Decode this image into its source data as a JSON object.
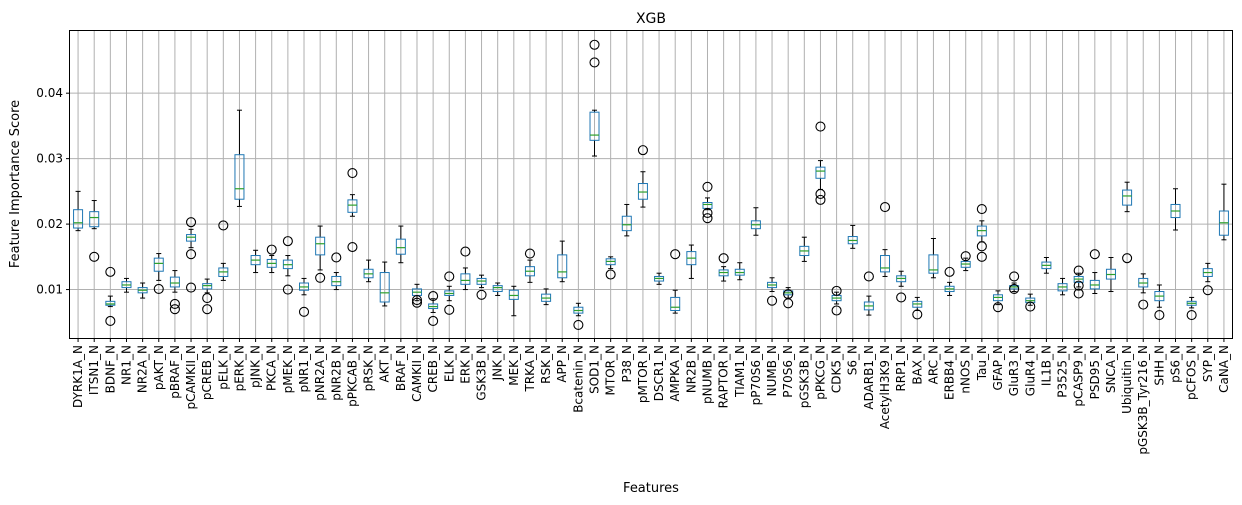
{
  "chart_data": {
    "type": "box",
    "title": "XGB",
    "xlabel": "Features",
    "ylabel": "Feature Importance Score",
    "ylim": [
      0.0026,
      0.0495
    ],
    "yticks": [
      0.01,
      0.02,
      0.03,
      0.04
    ],
    "ytick_labels": [
      "0.01",
      "0.02",
      "0.03",
      "0.04"
    ],
    "grid": true,
    "colors": {
      "box": "#1f77b4",
      "median": "#2ca02c",
      "grid": "#b0b0b0"
    },
    "features": [
      {
        "label": "DYRK1A_N",
        "whislo": 0.019,
        "q1": 0.0194,
        "med": 0.0202,
        "q3": 0.0222,
        "whishi": 0.025,
        "fliers": []
      },
      {
        "label": "ITSN1_N",
        "whislo": 0.0193,
        "q1": 0.0196,
        "med": 0.021,
        "q3": 0.0219,
        "whishi": 0.0236,
        "fliers": [
          0.015
        ]
      },
      {
        "label": "BDNF_N",
        "whislo": 0.0074,
        "q1": 0.0076,
        "med": 0.0078,
        "q3": 0.0082,
        "whishi": 0.009,
        "fliers": [
          0.0127,
          0.0052
        ]
      },
      {
        "label": "NR1_N",
        "whislo": 0.0096,
        "q1": 0.0103,
        "med": 0.0107,
        "q3": 0.0112,
        "whishi": 0.0117,
        "fliers": []
      },
      {
        "label": "NR2A_N",
        "whislo": 0.0087,
        "q1": 0.0095,
        "med": 0.0099,
        "q3": 0.0103,
        "whishi": 0.011,
        "fliers": []
      },
      {
        "label": "pAKT_N",
        "whislo": 0.0114,
        "q1": 0.0128,
        "med": 0.014,
        "q3": 0.0148,
        "whishi": 0.0155,
        "fliers": [
          0.0101
        ]
      },
      {
        "label": "pBRAF_N",
        "whislo": 0.0096,
        "q1": 0.0104,
        "med": 0.011,
        "q3": 0.0119,
        "whishi": 0.0129,
        "fliers": [
          0.0078,
          0.007
        ]
      },
      {
        "label": "pCAMKII_N",
        "whislo": 0.0164,
        "q1": 0.0174,
        "med": 0.018,
        "q3": 0.0184,
        "whishi": 0.0192,
        "fliers": [
          0.0203,
          0.0154,
          0.0103
        ]
      },
      {
        "label": "pCREB_N",
        "whislo": 0.0095,
        "q1": 0.0101,
        "med": 0.0106,
        "q3": 0.0109,
        "whishi": 0.0116,
        "fliers": [
          0.0087,
          0.007
        ]
      },
      {
        "label": "pELK_N",
        "whislo": 0.0114,
        "q1": 0.012,
        "med": 0.0127,
        "q3": 0.0133,
        "whishi": 0.014,
        "fliers": [
          0.0198
        ]
      },
      {
        "label": "pERK_N",
        "whislo": 0.0227,
        "q1": 0.0238,
        "med": 0.0254,
        "q3": 0.0306,
        "whishi": 0.0374,
        "fliers": []
      },
      {
        "label": "pJNK_N",
        "whislo": 0.0126,
        "q1": 0.0138,
        "med": 0.0145,
        "q3": 0.0152,
        "whishi": 0.016,
        "fliers": []
      },
      {
        "label": "PKCA_N",
        "whislo": 0.0126,
        "q1": 0.0134,
        "med": 0.014,
        "q3": 0.0146,
        "whishi": 0.0152,
        "fliers": [
          0.0161
        ]
      },
      {
        "label": "pMEK_N",
        "whislo": 0.0121,
        "q1": 0.0132,
        "med": 0.0138,
        "q3": 0.0145,
        "whishi": 0.0152,
        "fliers": [
          0.0174,
          0.01
        ]
      },
      {
        "label": "pNR1_N",
        "whislo": 0.0092,
        "q1": 0.0099,
        "med": 0.0104,
        "q3": 0.011,
        "whishi": 0.0117,
        "fliers": [
          0.0066
        ]
      },
      {
        "label": "pNR2A_N",
        "whislo": 0.013,
        "q1": 0.0153,
        "med": 0.017,
        "q3": 0.018,
        "whishi": 0.0197,
        "fliers": [
          0.0118
        ]
      },
      {
        "label": "pNR2B_N",
        "whislo": 0.01,
        "q1": 0.0106,
        "med": 0.0112,
        "q3": 0.012,
        "whishi": 0.0126,
        "fliers": [
          0.0149
        ]
      },
      {
        "label": "pPKCAB_N",
        "whislo": 0.0212,
        "q1": 0.0218,
        "med": 0.0229,
        "q3": 0.0237,
        "whishi": 0.0245,
        "fliers": [
          0.0278,
          0.0165
        ]
      },
      {
        "label": "pRSK_N",
        "whislo": 0.0112,
        "q1": 0.0118,
        "med": 0.0124,
        "q3": 0.0131,
        "whishi": 0.0145,
        "fliers": []
      },
      {
        "label": "AKT_N",
        "whislo": 0.0075,
        "q1": 0.0081,
        "med": 0.0095,
        "q3": 0.0126,
        "whishi": 0.0142,
        "fliers": []
      },
      {
        "label": "BRAF_N",
        "whislo": 0.0141,
        "q1": 0.0154,
        "med": 0.0164,
        "q3": 0.0177,
        "whishi": 0.0197,
        "fliers": []
      },
      {
        "label": "CAMKII_N",
        "whislo": 0.0083,
        "q1": 0.0091,
        "med": 0.0096,
        "q3": 0.0101,
        "whishi": 0.0108,
        "fliers": [
          0.0084,
          0.008
        ]
      },
      {
        "label": "CREB_N",
        "whislo": 0.0065,
        "q1": 0.0071,
        "med": 0.0074,
        "q3": 0.0078,
        "whishi": 0.0086,
        "fliers": [
          0.009,
          0.0052
        ]
      },
      {
        "label": "ELK_N",
        "whislo": 0.0083,
        "q1": 0.0091,
        "med": 0.0094,
        "q3": 0.0098,
        "whishi": 0.0105,
        "fliers": [
          0.012,
          0.0069
        ]
      },
      {
        "label": "ERK_N",
        "whislo": 0.01,
        "q1": 0.0108,
        "med": 0.0114,
        "q3": 0.0124,
        "whishi": 0.0133,
        "fliers": [
          0.0158
        ]
      },
      {
        "label": "GSK3B_N",
        "whislo": 0.0103,
        "q1": 0.0108,
        "med": 0.0113,
        "q3": 0.0117,
        "whishi": 0.0122,
        "fliers": [
          0.0092
        ]
      },
      {
        "label": "JNK_N",
        "whislo": 0.0091,
        "q1": 0.0097,
        "med": 0.0103,
        "q3": 0.0106,
        "whishi": 0.011,
        "fliers": []
      },
      {
        "label": "MEK_N",
        "whislo": 0.006,
        "q1": 0.0085,
        "med": 0.0091,
        "q3": 0.0099,
        "whishi": 0.0105,
        "fliers": []
      },
      {
        "label": "TRKA_N",
        "whislo": 0.0111,
        "q1": 0.0121,
        "med": 0.0128,
        "q3": 0.0135,
        "whishi": 0.0145,
        "fliers": [
          0.0155
        ]
      },
      {
        "label": "RSK_N",
        "whislo": 0.0077,
        "q1": 0.0082,
        "med": 0.0087,
        "q3": 0.0093,
        "whishi": 0.0101,
        "fliers": []
      },
      {
        "label": "APP_N",
        "whislo": 0.0112,
        "q1": 0.0118,
        "med": 0.0127,
        "q3": 0.0153,
        "whishi": 0.0174,
        "fliers": []
      },
      {
        "label": "Bcatenin_N",
        "whislo": 0.006,
        "q1": 0.0064,
        "med": 0.0068,
        "q3": 0.0073,
        "whishi": 0.0079,
        "fliers": [
          0.0046
        ]
      },
      {
        "label": "SOD1_N",
        "whislo": 0.0304,
        "q1": 0.0328,
        "med": 0.0336,
        "q3": 0.0371,
        "whishi": 0.0374,
        "fliers": [
          0.0474,
          0.0447
        ]
      },
      {
        "label": "MTOR_N",
        "whislo": 0.0132,
        "q1": 0.0138,
        "med": 0.0143,
        "q3": 0.0147,
        "whishi": 0.015,
        "fliers": [
          0.0123
        ]
      },
      {
        "label": "P38_N",
        "whislo": 0.0182,
        "q1": 0.019,
        "med": 0.0199,
        "q3": 0.0212,
        "whishi": 0.023,
        "fliers": []
      },
      {
        "label": "pMTOR_N",
        "whislo": 0.0226,
        "q1": 0.0238,
        "med": 0.0249,
        "q3": 0.0262,
        "whishi": 0.028,
        "fliers": [
          0.0313
        ]
      },
      {
        "label": "DSCR1_N",
        "whislo": 0.0108,
        "q1": 0.0113,
        "med": 0.0117,
        "q3": 0.012,
        "whishi": 0.0125,
        "fliers": []
      },
      {
        "label": "AMPKA_N",
        "whislo": 0.0064,
        "q1": 0.0068,
        "med": 0.0073,
        "q3": 0.0088,
        "whishi": 0.0099,
        "fliers": [
          0.0154
        ]
      },
      {
        "label": "NR2B_N",
        "whislo": 0.0117,
        "q1": 0.0138,
        "med": 0.0148,
        "q3": 0.0158,
        "whishi": 0.0168,
        "fliers": []
      },
      {
        "label": "pNUMB_N",
        "whislo": 0.0222,
        "q1": 0.0224,
        "med": 0.023,
        "q3": 0.0233,
        "whishi": 0.024,
        "fliers": [
          0.0257,
          0.0217,
          0.0209
        ]
      },
      {
        "label": "RAPTOR_N",
        "whislo": 0.0113,
        "q1": 0.0121,
        "med": 0.0126,
        "q3": 0.013,
        "whishi": 0.0135,
        "fliers": [
          0.0148
        ]
      },
      {
        "label": "TIAM1_N",
        "whislo": 0.0115,
        "q1": 0.0122,
        "med": 0.0126,
        "q3": 0.0131,
        "whishi": 0.0141,
        "fliers": []
      },
      {
        "label": "pP70S6_N",
        "whislo": 0.0183,
        "q1": 0.0193,
        "med": 0.0199,
        "q3": 0.0205,
        "whishi": 0.0225,
        "fliers": []
      },
      {
        "label": "NUMB_N",
        "whislo": 0.0097,
        "q1": 0.0103,
        "med": 0.0107,
        "q3": 0.0111,
        "whishi": 0.0118,
        "fliers": [
          0.0083
        ]
      },
      {
        "label": "P70S6_N",
        "whislo": 0.0087,
        "q1": 0.0092,
        "med": 0.0095,
        "q3": 0.0098,
        "whishi": 0.0103,
        "fliers": [
          0.0093,
          0.0079
        ]
      },
      {
        "label": "pGSK3B_N",
        "whislo": 0.0143,
        "q1": 0.0152,
        "med": 0.0159,
        "q3": 0.0166,
        "whishi": 0.018,
        "fliers": []
      },
      {
        "label": "pPKCG_N",
        "whislo": 0.0253,
        "q1": 0.027,
        "med": 0.0281,
        "q3": 0.0287,
        "whishi": 0.0297,
        "fliers": [
          0.0349,
          0.0246,
          0.0237
        ]
      },
      {
        "label": "CDK5_N",
        "whislo": 0.0078,
        "q1": 0.0083,
        "med": 0.0087,
        "q3": 0.0091,
        "whishi": 0.0096,
        "fliers": [
          0.0098,
          0.0068
        ]
      },
      {
        "label": "S6_N",
        "whislo": 0.0163,
        "q1": 0.017,
        "med": 0.0175,
        "q3": 0.0181,
        "whishi": 0.0198,
        "fliers": []
      },
      {
        "label": "ADARB1_N",
        "whislo": 0.0061,
        "q1": 0.0069,
        "med": 0.0075,
        "q3": 0.0081,
        "whishi": 0.009,
        "fliers": [
          0.012
        ]
      },
      {
        "label": "AcetylH3K9_N",
        "whislo": 0.012,
        "q1": 0.0127,
        "med": 0.0133,
        "q3": 0.0152,
        "whishi": 0.0161,
        "fliers": [
          0.0226
        ]
      },
      {
        "label": "RRP1_N",
        "whislo": 0.0105,
        "q1": 0.0112,
        "med": 0.0117,
        "q3": 0.0121,
        "whishi": 0.0128,
        "fliers": [
          0.0088
        ]
      },
      {
        "label": "BAX_N",
        "whislo": 0.0068,
        "q1": 0.0073,
        "med": 0.0078,
        "q3": 0.0082,
        "whishi": 0.0088,
        "fliers": [
          0.0062
        ]
      },
      {
        "label": "ARC_N",
        "whislo": 0.0118,
        "q1": 0.0125,
        "med": 0.013,
        "q3": 0.0153,
        "whishi": 0.0178,
        "fliers": []
      },
      {
        "label": "ERBB4_N",
        "whislo": 0.0091,
        "q1": 0.0097,
        "med": 0.0101,
        "q3": 0.0105,
        "whishi": 0.0111,
        "fliers": [
          0.0127
        ]
      },
      {
        "label": "nNOS_N",
        "whislo": 0.0129,
        "q1": 0.0134,
        "med": 0.0139,
        "q3": 0.0143,
        "whishi": 0.0148,
        "fliers": [
          0.0151
        ]
      },
      {
        "label": "Tau_N",
        "whislo": 0.0173,
        "q1": 0.0182,
        "med": 0.019,
        "q3": 0.0197,
        "whishi": 0.0205,
        "fliers": [
          0.0223,
          0.0166,
          0.015
        ]
      },
      {
        "label": "GFAP_N",
        "whislo": 0.0077,
        "q1": 0.0083,
        "med": 0.0088,
        "q3": 0.0092,
        "whishi": 0.0098,
        "fliers": [
          0.0073
        ]
      },
      {
        "label": "GluR3_N",
        "whislo": 0.0097,
        "q1": 0.0101,
        "med": 0.0104,
        "q3": 0.0106,
        "whishi": 0.011,
        "fliers": [
          0.012,
          0.0101
        ]
      },
      {
        "label": "GluR4_N",
        "whislo": 0.0076,
        "q1": 0.008,
        "med": 0.0083,
        "q3": 0.0087,
        "whishi": 0.0093,
        "fliers": [
          0.0074
        ]
      },
      {
        "label": "IL1B_N",
        "whislo": 0.0125,
        "q1": 0.0132,
        "med": 0.0137,
        "q3": 0.0142,
        "whishi": 0.0149,
        "fliers": []
      },
      {
        "label": "P3525_N",
        "whislo": 0.0092,
        "q1": 0.0098,
        "med": 0.0104,
        "q3": 0.0109,
        "whishi": 0.0117,
        "fliers": []
      },
      {
        "label": "pCASP9_N",
        "whislo": 0.0104,
        "q1": 0.0111,
        "med": 0.0116,
        "q3": 0.012,
        "whishi": 0.0125,
        "fliers": [
          0.0129,
          0.0106,
          0.0094
        ]
      },
      {
        "label": "PSD95_N",
        "whislo": 0.0094,
        "q1": 0.0101,
        "med": 0.0107,
        "q3": 0.0114,
        "whishi": 0.0126,
        "fliers": [
          0.0154
        ]
      },
      {
        "label": "SNCA_N",
        "whislo": 0.0097,
        "q1": 0.0116,
        "med": 0.0123,
        "q3": 0.0131,
        "whishi": 0.0149,
        "fliers": []
      },
      {
        "label": "Ubiquitin_N",
        "whislo": 0.0219,
        "q1": 0.0229,
        "med": 0.0243,
        "q3": 0.0252,
        "whishi": 0.0264,
        "fliers": [
          0.0148
        ]
      },
      {
        "label": "pGSK3B_Tyr216_N",
        "whislo": 0.0095,
        "q1": 0.0104,
        "med": 0.011,
        "q3": 0.0117,
        "whishi": 0.0124,
        "fliers": [
          0.0077
        ]
      },
      {
        "label": "SHH_N",
        "whislo": 0.0073,
        "q1": 0.0083,
        "med": 0.009,
        "q3": 0.0097,
        "whishi": 0.0107,
        "fliers": [
          0.0061
        ]
      },
      {
        "label": "pS6_N",
        "whislo": 0.0191,
        "q1": 0.021,
        "med": 0.022,
        "q3": 0.023,
        "whishi": 0.0254,
        "fliers": []
      },
      {
        "label": "pCFOS_N",
        "whislo": 0.0072,
        "q1": 0.0076,
        "med": 0.0079,
        "q3": 0.0082,
        "whishi": 0.0088,
        "fliers": [
          0.0061
        ]
      },
      {
        "label": "SYP_N",
        "whislo": 0.0112,
        "q1": 0.012,
        "med": 0.0126,
        "q3": 0.0132,
        "whishi": 0.014,
        "fliers": [
          0.0099
        ]
      },
      {
        "label": "CaNA_N",
        "whislo": 0.0176,
        "q1": 0.0183,
        "med": 0.0202,
        "q3": 0.022,
        "whishi": 0.0261,
        "fliers": []
      }
    ]
  }
}
